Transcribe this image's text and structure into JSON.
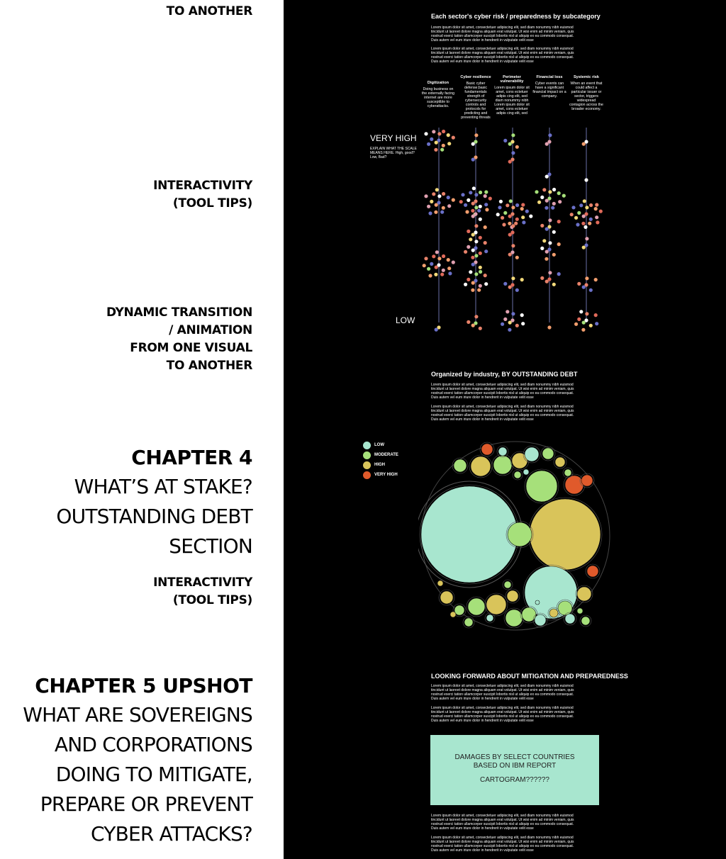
{
  "left": {
    "note1": "TO ANOTHER",
    "note2_lines": [
      "INTERACTIVITY",
      "(TOOL TIPS)"
    ],
    "note3_lines": [
      "DYNAMIC TRANSITION",
      "/ ANIMATION",
      "FROM ONE VISUAL",
      "TO ANOTHER"
    ],
    "chapter4": {
      "heading": "CHAPTER 4",
      "sub_lines": [
        "WHAT’S AT STAKE?",
        "OUTSTANDING DEBT",
        "SECTION"
      ]
    },
    "note4_lines": [
      "INTERACTIVITY",
      "(TOOL TIPS)"
    ],
    "chapter5": {
      "heading": "CHAPTER 5 UPSHOT",
      "sub_lines": [
        "WHAT ARE SOVEREIGNS",
        "AND CORPORATIONS",
        "DOING TO MITIGATE,",
        "PREPARE OR PREVENT",
        "CYBER ATTACKS?"
      ]
    }
  },
  "section1": {
    "title": "Each sector's cyber risk / preparedness by subcategory",
    "para1": "Lorem ipsum dolor sit amet, consectetuer adipiscing elit, sed diam nonummy nibh euismod tincidunt ut laoreet dolore magna aliquam erat volutpat. Ut wisi enim ad minim veniam, quis nostrud exerci tation ullamcorper suscipit lobortis nisl ut aliquip ex ea commodo consequat. Duis autem vel eum iriure dolor in hendrerit in vulputate velit esse",
    "para2": "Lorem ipsum dolor sit amet, consectetuer adipiscing elit, sed diam nonummy nibh euismod tincidunt ut laoreet dolore magna aliquam erat volutpat. Ut wisi enim ad minim veniam, quis nostrud exerci tation ullamcorper suscipit lobortis nisl ut aliquip ex ea commodo consequat. Duis autem vel eum iriure dolor in hendrerit in vulputate velit esse",
    "columns": [
      {
        "name": "Digitization",
        "desc": "Doing business on the externally facing internet are more susceptible to cyberattacks."
      },
      {
        "name": "Cyber resilience",
        "desc": "Basic cyber defense;basic fundamentals strength of cybersecurity controls and protocols for predicting and preventing threats"
      },
      {
        "name": "Perimeter vulnerability",
        "desc": "Lorem ipsum dolor sit amet, cons ectetuer adipis cing elit, sed diam nonummy nibh Lorem ipsum dolor sit amet, cons ectetuer adipis cing elit, sed"
      },
      {
        "name": "Financial loss",
        "desc": "Cyber events can have a significant financial impact on a company."
      },
      {
        "name": "Systemic risk",
        "desc": "When an event that could affect a particular issuer or sector, triggers widespread contagion across the broader economy."
      }
    ],
    "scale_high": "VERY HIGH",
    "scale_explain": "EXPLAIN WHAT THE SCALE MEANS HERE. High, good? Low, Bad?",
    "scale_low": "LOW"
  },
  "section2": {
    "title": "Organized by industry, BY OUTSTANDING DEBT",
    "para1": "Lorem ipsum dolor sit amet, consectetuer adipiscing elit, sed diam nonummy nibh euismod tincidunt ut laoreet dolore magna aliquam erat volutpat. Ut wisi enim ad minim veniam, quis nostrud exerci tation ullamcorper suscipit lobortis nisl ut aliquip ex ea commodo consequat. Duis autem vel eum iriure dolor in hendrerit in vulputate velit esse",
    "para2": "Lorem ipsum dolor sit amet, consectetuer adipiscing elit, sed diam nonummy nibh euismod tincidunt ut laoreet dolore magna aliquam erat volutpat. Ut wisi enim ad minim veniam, quis nostrud exerci tation ullamcorper suscipit lobortis nisl ut aliquip ex ea commodo consequat. Duis autem vel eum iriure dolor in hendrerit in vulputate velit esse",
    "legend": [
      {
        "label": "LOW",
        "color": "#a8e6cf"
      },
      {
        "label": "MODERATE",
        "color": "#a6e07a"
      },
      {
        "label": "HIGH",
        "color": "#d9c45a"
      },
      {
        "label": "VERY HIGH",
        "color": "#e05a2b"
      }
    ]
  },
  "section3": {
    "title": "LOOKING FORWARD ABOUT MITIGATION AND PREPAREDNESS",
    "para1": "Lorem ipsum dolor sit amet, consectetuer adipiscing elit, sed diam nonummy nibh euismod tincidunt ut laoreet dolore magna aliquam erat volutpat. Ut wisi enim ad minim veniam, quis nostrud exerci tation ullamcorper suscipit lobortis nisl ut aliquip ex ea commodo consequat. Duis autem vel eum iriure dolor in hendrerit in vulputate velit esse",
    "para2": "Lorem ipsum dolor sit amet, consectetuer adipiscing elit, sed diam nonummy nibh euismod tincidunt ut laoreet dolore magna aliquam erat volutpat. Ut wisi enim ad minim veniam, quis nostrud exerci tation ullamcorper suscipit lobortis nisl ut aliquip ex ea commodo consequat. Duis autem vel eum iriure dolor in hendrerit in vulputate velit esse",
    "cartogram_lines": [
      "DAMAGES BY SELECT COUNTRIES",
      "BASED ON IBM REPORT",
      "",
      "CARTOGRAM??????"
    ],
    "para3": "Lorem ipsum dolor sit amet, consectetuer adipiscing elit, sed diam nonummy nibh euismod tincidunt ut laoreet dolore magna aliquam erat volutpat. Ut wisi enim ad minim veniam, quis nostrud exerci tation ullamcorper suscipit lobortis nisl ut aliquip ex ea commodo consequat. Duis autem vel eum iriure dolor in hendrerit in vulputate velit esse",
    "para4": "Lorem ipsum dolor sit amet, consectetuer adipiscing elit, sed diam nonummy nibh euismod tincidunt ut laoreet dolore magna aliquam erat volutpat. Ut wisi enim ad minim veniam, quis nostrud exerci tation ullamcorper suscipit lobortis nisl ut aliquip ex ea commodo consequat. Duis autem vel eum iriure dolor in hendrerit in vulputate velit esse"
  },
  "colors": {
    "dot_palette": [
      "#e8826a",
      "#f29e6e",
      "#e06a5a",
      "#6a70c8",
      "#f2d97a",
      "#ffffff",
      "#a6e07a",
      "#e0a0b0"
    ],
    "axis": "#6a6fa8"
  }
}
